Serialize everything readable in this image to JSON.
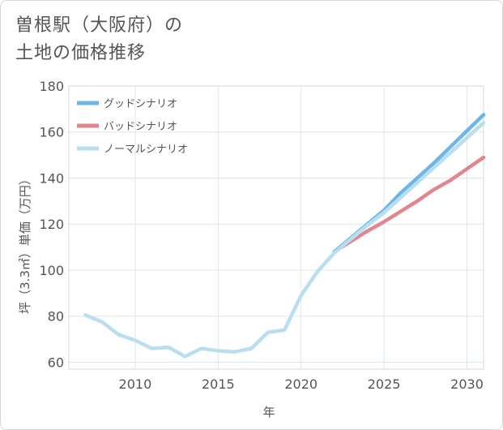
{
  "title_line1": "曽根駅（大阪府）の",
  "title_line2": "土地の価格推移",
  "chart_data": {
    "type": "line",
    "xlabel": "年",
    "ylabel": "坪（3.3㎡）単価（万円）",
    "xlim": [
      2006,
      2031
    ],
    "ylim": [
      57,
      180
    ],
    "xticks": [
      2010,
      2015,
      2020,
      2025,
      2030
    ],
    "yticks": [
      60,
      80,
      100,
      120,
      140,
      160,
      180
    ],
    "grid": true,
    "legend_position": "top-left",
    "colors": {
      "good": "#6cb6ea",
      "bad": "#e0868f",
      "normal": "#b9def0"
    },
    "series": [
      {
        "key": "good",
        "name": "グッドシナリオ",
        "x": [
          2022,
          2023,
          2024,
          2025,
          2026,
          2027,
          2028,
          2029,
          2030,
          2031
        ],
        "values": [
          108,
          114,
          120,
          126,
          133.5,
          140,
          146.5,
          153.5,
          160.5,
          167.5
        ]
      },
      {
        "key": "bad",
        "name": "バッドシナリオ",
        "x": [
          2022,
          2023,
          2024,
          2025,
          2026,
          2027,
          2028,
          2029,
          2030,
          2031
        ],
        "values": [
          108,
          112.5,
          117,
          121,
          125.5,
          130,
          135,
          139,
          144,
          149
        ]
      },
      {
        "key": "normal",
        "name": "ノーマルシナリオ",
        "x": [
          2007,
          2008,
          2009,
          2010,
          2011,
          2012,
          2013,
          2014,
          2015,
          2016,
          2017,
          2018,
          2019,
          2020,
          2021,
          2022,
          2023,
          2024,
          2025,
          2026,
          2027,
          2028,
          2029,
          2030,
          2031
        ],
        "values": [
          80.5,
          77.5,
          72,
          69.5,
          66,
          66.5,
          62.5,
          66,
          65,
          64.5,
          66,
          73,
          74,
          89,
          99.5,
          107.5,
          113.5,
          119.5,
          125,
          131.5,
          138,
          144.5,
          151,
          157.5,
          164
        ]
      }
    ]
  }
}
